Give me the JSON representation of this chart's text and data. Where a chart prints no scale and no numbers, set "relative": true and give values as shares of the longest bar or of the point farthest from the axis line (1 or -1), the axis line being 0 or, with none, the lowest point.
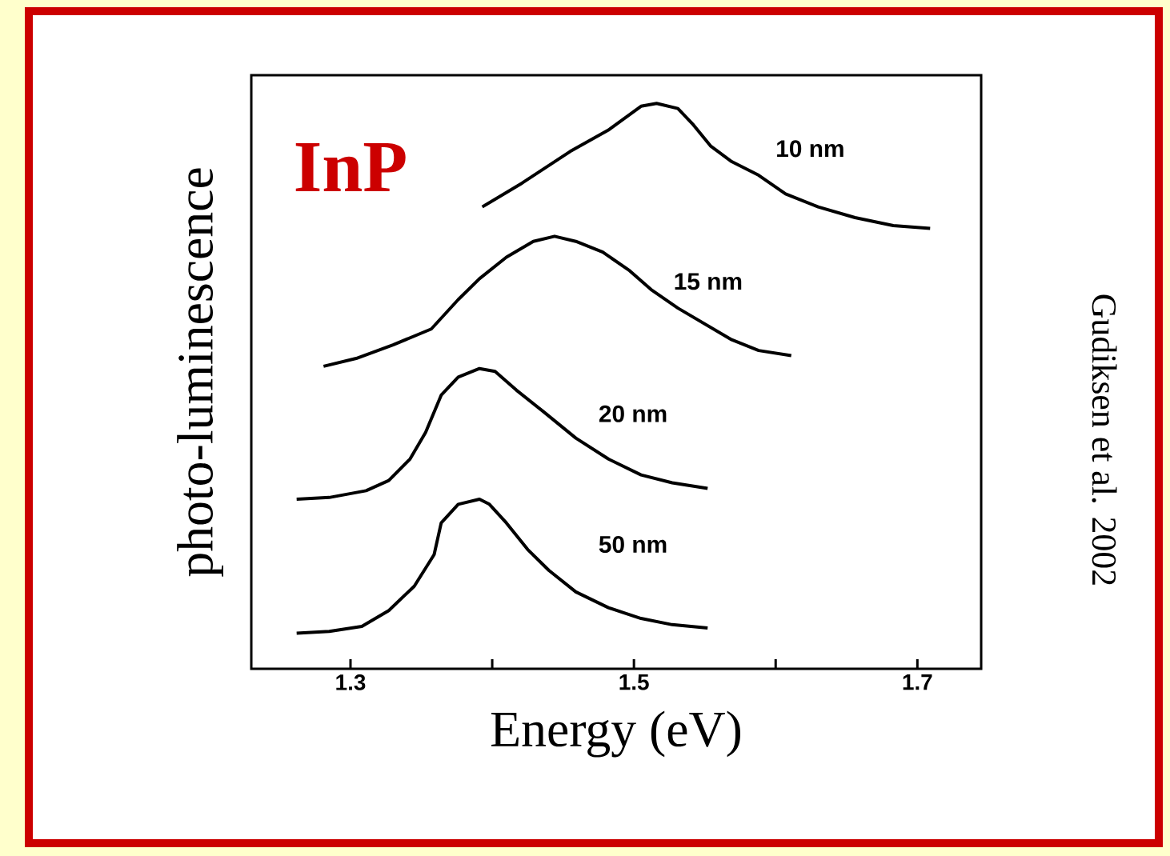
{
  "chart_data": {
    "type": "line",
    "relative": true,
    "xlabel": "Energy (eV)",
    "ylabel": "photo-luminescence",
    "annotations": [
      "InP",
      "Gudiksen et al. 2002"
    ],
    "xlim": [
      1.23,
      1.745
    ],
    "xticks": [
      1.3,
      {
        "value": 1.4,
        "label": null
      },
      1.5,
      {
        "value": 1.6,
        "label": null
      },
      1.7
    ],
    "series": [
      {
        "name": "10 nm",
        "color": "#000000",
        "x": [
          1.393,
          1.421,
          1.455,
          1.482,
          1.505,
          1.516,
          1.531,
          1.542,
          1.554,
          1.569,
          1.588,
          1.607,
          1.63,
          1.656,
          1.683,
          1.709
        ],
        "values": [
          0.817,
          0.859,
          0.915,
          0.953,
          0.995,
          1.0,
          0.991,
          0.962,
          0.925,
          0.897,
          0.873,
          0.84,
          0.817,
          0.798,
          0.784,
          0.779
        ]
      },
      {
        "name": "15 nm",
        "color": "#000000",
        "x": [
          1.281,
          1.304,
          1.33,
          1.357,
          1.376,
          1.391,
          1.41,
          1.429,
          1.444,
          1.459,
          1.478,
          1.497,
          1.512,
          1.531,
          1.55,
          1.569,
          1.588,
          1.611
        ],
        "values": [
          0.535,
          0.549,
          0.573,
          0.601,
          0.653,
          0.69,
          0.728,
          0.756,
          0.765,
          0.756,
          0.737,
          0.704,
          0.671,
          0.638,
          0.61,
          0.582,
          0.563,
          0.554
        ]
      },
      {
        "name": "20 nm",
        "color": "#000000",
        "x": [
          1.262,
          1.285,
          1.311,
          1.327,
          1.342,
          1.353,
          1.364,
          1.376,
          1.391,
          1.402,
          1.417,
          1.436,
          1.459,
          1.482,
          1.505,
          1.527,
          1.552
        ],
        "values": [
          0.3,
          0.303,
          0.315,
          0.333,
          0.371,
          0.418,
          0.484,
          0.516,
          0.531,
          0.526,
          0.493,
          0.455,
          0.408,
          0.371,
          0.343,
          0.329,
          0.319
        ]
      },
      {
        "name": "50 nm",
        "color": "#000000",
        "x": [
          1.262,
          1.285,
          1.308,
          1.327,
          1.345,
          1.359,
          1.364,
          1.376,
          1.391,
          1.398,
          1.41,
          1.425,
          1.44,
          1.459,
          1.482,
          1.505,
          1.527,
          1.552
        ],
        "values": [
          0.063,
          0.066,
          0.075,
          0.103,
          0.146,
          0.202,
          0.258,
          0.291,
          0.3,
          0.291,
          0.258,
          0.211,
          0.174,
          0.136,
          0.108,
          0.089,
          0.078,
          0.072
        ]
      }
    ]
  }
}
